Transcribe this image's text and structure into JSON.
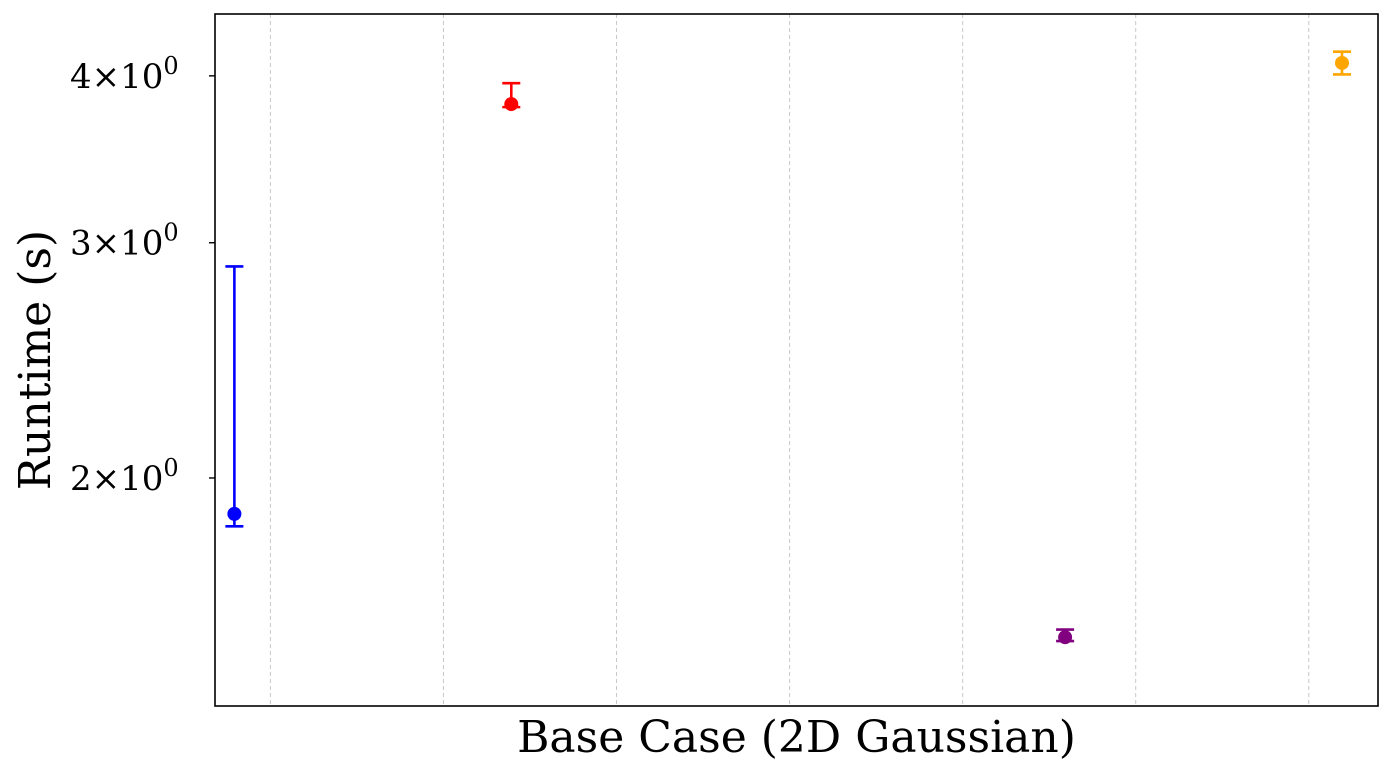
{
  "chart_data": {
    "type": "scatter",
    "title": "",
    "xlabel": "Base Case (2D Gaussian)",
    "ylabel": "Runtime (s)",
    "yscale": "log",
    "ylim": [
      1.35,
      4.45
    ],
    "xlim": [
      -0.2,
      4.0
    ],
    "grid": {
      "x": true,
      "y": false,
      "style": "dashed"
    },
    "legend": "none",
    "yticks": [
      {
        "value": 2,
        "base": "2",
        "exp": "0"
      },
      {
        "value": 3,
        "base": "3",
        "exp": "0"
      },
      {
        "value": 4,
        "base": "4",
        "exp": "0"
      }
    ],
    "x_gridlines": [
      0,
      0.625,
      1.25,
      1.875,
      2.5,
      3.125,
      3.75
    ],
    "points": [
      {
        "x": -0.13,
        "y": 1.88,
        "err_low": 1.84,
        "err_high": 2.88,
        "color": "#0000ff"
      },
      {
        "x": 0.87,
        "y": 3.81,
        "err_low": 3.79,
        "err_high": 3.95,
        "color": "#ff0000"
      },
      {
        "x": 2.87,
        "y": 1.52,
        "err_low": 1.51,
        "err_high": 1.54,
        "color": "#800080"
      },
      {
        "x": 3.87,
        "y": 4.09,
        "err_low": 4.01,
        "err_high": 4.17,
        "color": "#ffa500"
      }
    ]
  }
}
